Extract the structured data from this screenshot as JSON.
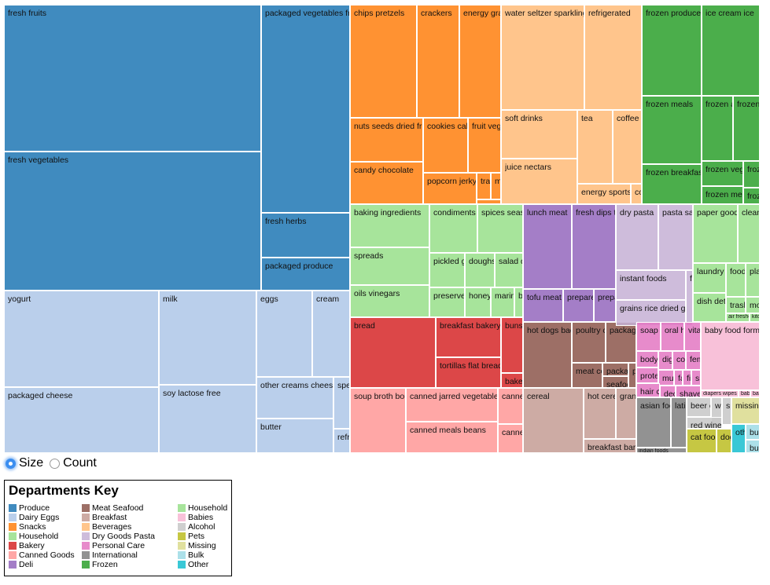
{
  "controls": {
    "size_label": "Size",
    "count_label": "Count",
    "selected": "Size"
  },
  "legend": {
    "title": "Departments Key"
  },
  "chart_data": {
    "type": "treemap",
    "title": "",
    "departments": [
      {
        "name": "Produce",
        "color": "#1f77b4",
        "aisles": [
          "fresh fruits",
          "fresh vegetables",
          "packaged vegetables fruits",
          "fresh herbs",
          "packaged produce"
        ]
      },
      {
        "name": "Dairy Eggs",
        "color": "#aec7e8",
        "aisles": [
          "yogurt",
          "packaged cheese",
          "milk",
          "soy lactose free",
          "eggs",
          "cream",
          "other creams cheeses",
          "butter",
          "specialty cheeses",
          "refrigerated pudding desserts"
        ]
      },
      {
        "name": "Snacks",
        "color": "#ff7f0e",
        "aisles": [
          "chips pretzels",
          "crackers",
          "energy granola bars",
          "nuts seeds dried fruit",
          "candy chocolate",
          "cookies cakes",
          "fruit vegetable snacks",
          "popcorn jerky",
          "trail mix snack mix",
          "mint gum",
          ""
        ]
      },
      {
        "name": "Household",
        "color": "#98df8a",
        "aisles": [
          "baking ingredients",
          "spreads",
          "oils vinegars",
          "condiments",
          "spices seasonings",
          "pickled goods olives",
          "doughs gelatins bake mixes",
          "salad dressing toppings",
          "preserved dips spreads",
          "honeys syrups nectars",
          "marinades meat preparation",
          "baking supplies decor"
        ]
      },
      {
        "name": "Bakery",
        "color": "#d62728",
        "aisles": [
          "bread",
          "breakfast bakery",
          "tortillas flat bread",
          "buns rolls",
          "bakery desserts"
        ]
      },
      {
        "name": "Canned Goods",
        "color": "#ff9896",
        "aisles": [
          "soup broth bouillon",
          "canned jarred vegetables",
          "canned meals beans",
          "canned fruit applesauce",
          "canned meat seafood"
        ]
      },
      {
        "name": "Deli",
        "color": "#9467bd",
        "aisles": [
          "lunch meat",
          "fresh dips tapenades",
          "tofu meat alternatives",
          "prepared soups salads",
          "prepared meals"
        ]
      },
      {
        "name": "Meat Seafood",
        "color": "#8c564b",
        "aisles": [
          "hot dogs bacon sausage",
          "poultry counter",
          "packaged meat",
          "meat counter",
          "packaged poultry",
          "packaged seafood",
          "seafood counter"
        ]
      },
      {
        "name": "Breakfast",
        "color": "#c49c94",
        "aisles": [
          "cereal",
          "hot cereal pancake mixes",
          "granola",
          "breakfast bars pastries"
        ]
      },
      {
        "name": "Beverages",
        "color": "#ffbb78",
        "aisles": [
          "water seltzer sparkling water",
          "refrigerated",
          "soft drinks",
          "juice nectars",
          "tea",
          "coffee",
          "energy sports drinks",
          "cocoa drink mixes"
        ]
      },
      {
        "name": "Dry Goods Pasta",
        "color": "#c5b0d5",
        "aisles": [
          "dry pasta",
          "pasta sauce",
          "instant foods",
          "grains rice dried goods",
          "fresh pasta"
        ]
      },
      {
        "name": "Personal Care",
        "color": "#e377c2",
        "aisles": [
          "soap",
          "oral hygiene",
          "vitamins supplements",
          "body lotions soap",
          "digestion",
          "cold flu allergy",
          "feminine care",
          "protein meal replacements",
          "muscles joints pain relief",
          "facial care",
          "first aid",
          "skin care",
          "hair care",
          "deodorants",
          "shave needs"
        ]
      },
      {
        "name": "International",
        "color": "#7f7f7f",
        "aisles": [
          "asian foods",
          "latino foods",
          "indian foods"
        ]
      },
      {
        "name": "Frozen",
        "color": "#2ca02c",
        "aisles": [
          "frozen produce",
          "ice cream ice",
          "frozen meals",
          "frozen breakfast",
          "frozen appetizers sides",
          "frozen pizza",
          "frozen vegan vegetarian",
          "frozen meat seafood",
          "frozen dessert",
          "frozen juice"
        ]
      },
      {
        "name": "Household",
        "color": "#98df8a",
        "aisles": [
          "paper goods",
          "cleaning products",
          "laundry",
          "dish detergents",
          "food storage",
          "plates bowls cups flatware",
          "trash bags liners",
          "more household",
          "air fresheners candles",
          "kitchen supplies"
        ]
      },
      {
        "name": "Babies",
        "color": "#f7b6d2",
        "aisles": [
          "baby food formula",
          "diapers wipes",
          "baby bath body care",
          "baby accessories"
        ]
      },
      {
        "name": "Alcohol",
        "color": "#c7c7c7",
        "aisles": [
          "beer coolers",
          "white wines",
          "spirits",
          "red wines"
        ]
      },
      {
        "name": "Pets",
        "color": "#bcbd22",
        "aisles": [
          "cat food care",
          "dog food care"
        ]
      },
      {
        "name": "Missing",
        "color": "#dbdb8d",
        "aisles": [
          "missing"
        ]
      },
      {
        "name": "Bulk",
        "color": "#9edae5",
        "aisles": [
          "bulk dried fruits vegetables",
          "bulk grains rice dried goods"
        ]
      },
      {
        "name": "Other",
        "color": "#17becf",
        "aisles": [
          "other"
        ]
      }
    ]
  }
}
